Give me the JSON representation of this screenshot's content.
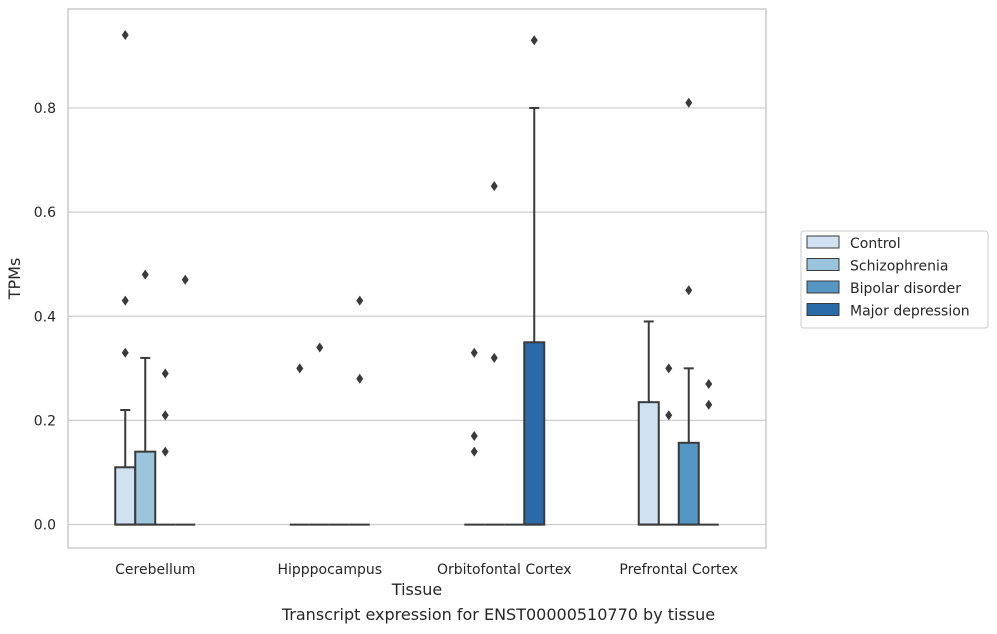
{
  "chart_data": {
    "type": "box",
    "xlabel": "Tissue",
    "ylabel": "TPMs",
    "ylim": [
      -0.045,
      0.99
    ],
    "yticks": [
      0.0,
      0.2,
      0.4,
      0.6,
      0.8
    ],
    "ytick_labels": [
      "0.0",
      "0.2",
      "0.4",
      "0.6",
      "0.8"
    ],
    "grid": "horizontal",
    "legend_position": "right",
    "categories": [
      "Cerebellum",
      "Hipppocampus",
      "Orbitofontal Cortex",
      "Prefrontal Cortex"
    ],
    "series": [
      {
        "name": "Control",
        "color": "#d0e1f2",
        "boxes": [
          {
            "q1": 0.0,
            "median": 0.0,
            "q3": 0.11,
            "whisker_low": 0.0,
            "whisker_high": 0.22,
            "outliers": [
              0.33,
              0.43,
              0.94
            ]
          },
          {
            "q1": 0.0,
            "median": 0.0,
            "q3": 0.0,
            "whisker_low": 0.0,
            "whisker_high": 0.0,
            "outliers": [
              0.3
            ]
          },
          {
            "q1": 0.0,
            "median": 0.0,
            "q3": 0.0,
            "whisker_low": 0.0,
            "whisker_high": 0.0,
            "outliers": [
              0.14,
              0.17,
              0.33
            ]
          },
          {
            "q1": 0.0,
            "median": 0.0,
            "q3": 0.235,
            "whisker_low": 0.0,
            "whisker_high": 0.39,
            "outliers": []
          }
        ]
      },
      {
        "name": "Schizophrenia",
        "color": "#9ac5dd",
        "boxes": [
          {
            "q1": 0.0,
            "median": 0.0,
            "q3": 0.14,
            "whisker_low": 0.0,
            "whisker_high": 0.32,
            "outliers": [
              0.48
            ]
          },
          {
            "q1": 0.0,
            "median": 0.0,
            "q3": 0.0,
            "whisker_low": 0.0,
            "whisker_high": 0.0,
            "outliers": [
              0.34
            ]
          },
          {
            "q1": 0.0,
            "median": 0.0,
            "q3": 0.0,
            "whisker_low": 0.0,
            "whisker_high": 0.0,
            "outliers": [
              0.32,
              0.65
            ]
          },
          {
            "q1": 0.0,
            "median": 0.0,
            "q3": 0.0,
            "whisker_low": 0.0,
            "whisker_high": 0.0,
            "outliers": [
              0.21,
              0.3
            ]
          }
        ]
      },
      {
        "name": "Bipolar disorder",
        "color": "#5596c4",
        "boxes": [
          {
            "q1": 0.0,
            "median": 0.0,
            "q3": 0.0,
            "whisker_low": 0.0,
            "whisker_high": 0.0,
            "outliers": [
              0.14,
              0.21,
              0.29
            ]
          },
          {
            "q1": 0.0,
            "median": 0.0,
            "q3": 0.0,
            "whisker_low": 0.0,
            "whisker_high": 0.0,
            "outliers": []
          },
          {
            "q1": 0.0,
            "median": 0.0,
            "q3": 0.0,
            "whisker_low": 0.0,
            "whisker_high": 0.0,
            "outliers": []
          },
          {
            "q1": 0.0,
            "median": 0.0,
            "q3": 0.157,
            "whisker_low": 0.0,
            "whisker_high": 0.3,
            "outliers": [
              0.45,
              0.81
            ]
          }
        ]
      },
      {
        "name": "Major depression",
        "color": "#2b6aa8",
        "boxes": [
          {
            "q1": 0.0,
            "median": 0.0,
            "q3": 0.0,
            "whisker_low": 0.0,
            "whisker_high": 0.0,
            "outliers": [
              0.47
            ]
          },
          {
            "q1": 0.0,
            "median": 0.0,
            "q3": 0.0,
            "whisker_low": 0.0,
            "whisker_high": 0.0,
            "outliers": [
              0.28,
              0.43
            ]
          },
          {
            "q1": 0.0,
            "median": 0.0,
            "q3": 0.35,
            "whisker_low": 0.0,
            "whisker_high": 0.8,
            "outliers": [
              0.93
            ]
          },
          {
            "q1": 0.0,
            "median": 0.0,
            "q3": 0.0,
            "whisker_low": 0.0,
            "whisker_high": 0.0,
            "outliers": [
              0.23,
              0.27
            ]
          }
        ]
      }
    ]
  },
  "caption": "Transcript expression for ENST00000510770 by tissue"
}
